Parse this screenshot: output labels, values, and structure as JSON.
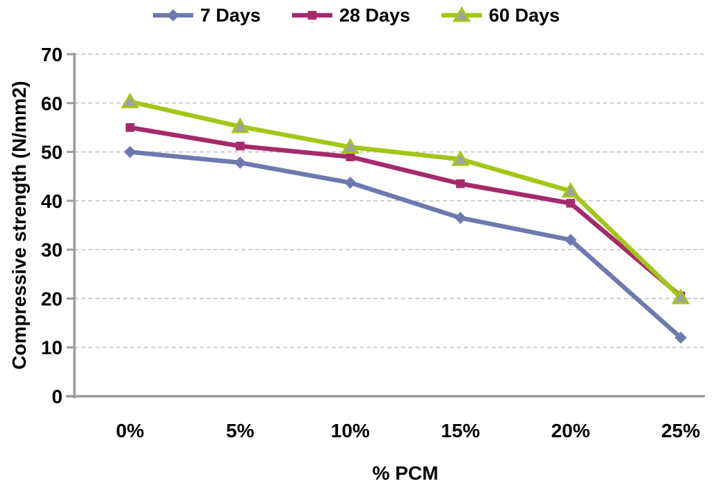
{
  "chart_data": {
    "type": "line",
    "title": "",
    "xlabel": "% PCM",
    "ylabel": "Compressive strength (N/mm2)",
    "categories": [
      "0%",
      "5%",
      "10%",
      "15%",
      "20%",
      "25%"
    ],
    "yticks": [
      0,
      10,
      20,
      30,
      40,
      50,
      60,
      70
    ],
    "ylim": [
      0,
      70
    ],
    "grid": "horizontal-dashed",
    "legend_position": "top",
    "series": [
      {
        "name": "7 Days",
        "marker": "diamond",
        "color": "#6F79AF",
        "values": [
          50,
          47.8,
          43.7,
          36.5,
          32,
          12
        ]
      },
      {
        "name": "28 Days",
        "marker": "square",
        "color": "#A42A6B",
        "values": [
          55,
          51.2,
          49,
          43.5,
          39.5,
          20.5
        ]
      },
      {
        "name": "60 Days",
        "marker": "triangle",
        "color": "#A3C617",
        "marker_fill": "#9EA0A5",
        "values": [
          60.3,
          55.2,
          51,
          48.5,
          42,
          20.2
        ]
      }
    ],
    "colors": {
      "grid": "#C8C8C8",
      "axis": "#9C9C9C",
      "text": "#000000"
    }
  }
}
